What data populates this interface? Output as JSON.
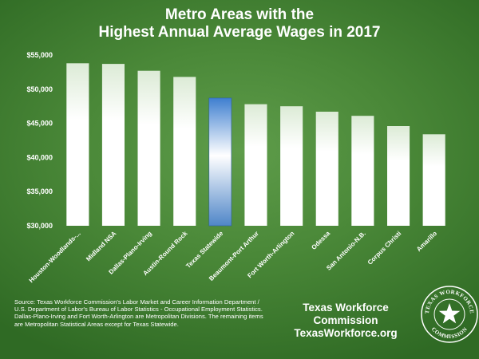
{
  "chart_data": {
    "type": "bar",
    "title_line1": "Metro Areas with the",
    "title_line2": "Highest Annual Average Wages in 2017",
    "categories": [
      "Houston-Woodlands-...",
      "Midland NSA",
      "Dallas-Plano-Irving",
      "Austin-Round Rock",
      "Texas Statewide",
      "Beaumont-Port Arthur",
      "Fort Worth-Arlington",
      "Odessa",
      "San Antonio-N.B.",
      "Corpus Christi",
      "Amarillo"
    ],
    "values": [
      53800,
      53700,
      52700,
      51800,
      48700,
      47800,
      47500,
      46700,
      46100,
      44600,
      43400
    ],
    "highlight_category": "Texas Statewide",
    "ylim": [
      30000,
      55000
    ],
    "yticks": [
      30000,
      35000,
      40000,
      45000,
      50000,
      55000
    ],
    "ytick_labels": [
      "$30,000",
      "$35,000",
      "$40,000",
      "$45,000",
      "$50,000",
      "$55,000"
    ],
    "grid": false,
    "colors": {
      "bar_fill": "#ffffff",
      "highlight_fill": "#4a8ad0",
      "background": "#4a8838"
    }
  },
  "source_note": "Source: Texas Workforce Commission's Labor Market and Career Information Department / U.S. Department of Labor's Bureau of Labor Statistics - Occupational Employment Statistics. Dallas-Plano-Irving  and Fort Worth-Arlington are Metropolitan Divisions.  The remaining items are Metropolitan Statistical Areas except for Texas Statewide.",
  "org": {
    "name": "Texas Workforce Commission",
    "url": "TexasWorkforce.org"
  },
  "seal": {
    "text_top": "TEXAS WORKFORCE",
    "text_bottom": "COMMISSION",
    "icon": "texas-star-seal"
  }
}
